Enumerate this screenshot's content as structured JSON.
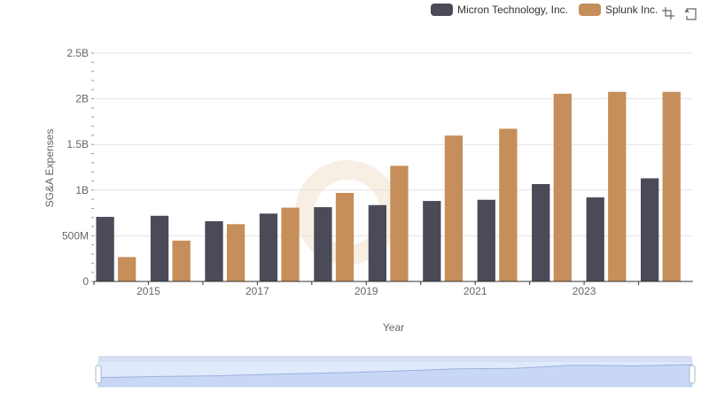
{
  "legend": [
    {
      "name": "Micron Technology, Inc.",
      "color": "#4a4a58"
    },
    {
      "name": "Splunk Inc.",
      "color": "#c68e5a"
    }
  ],
  "toolbox": {
    "icons": [
      "zoom-icon",
      "restore-icon"
    ]
  },
  "chart_data": {
    "type": "bar",
    "title": "",
    "xlabel": "Year",
    "ylabel": "SG&A Expenses",
    "ylim": [
      0,
      2500000000
    ],
    "y_ticks": [
      0,
      500000000,
      1000000000,
      1500000000,
      2000000000,
      2500000000
    ],
    "y_tick_labels": [
      "0",
      "500M",
      "1B",
      "1.5B",
      "2B",
      "2.5B"
    ],
    "categories": [
      "2014",
      "2015",
      "2016",
      "2017",
      "2018",
      "2019",
      "2020",
      "2021",
      "2022",
      "2023",
      "2024"
    ],
    "x_tick_labels": [
      "2015",
      "2017",
      "2019",
      "2021",
      "2023"
    ],
    "series": [
      {
        "name": "Micron Technology, Inc.",
        "color": "#4a4a58",
        "values": [
          707000000,
          719000000,
          659000000,
          743000000,
          813000000,
          836000000,
          881000000,
          894000000,
          1066000000,
          920000000,
          1129000000
        ]
      },
      {
        "name": "Splunk Inc.",
        "color": "#c68e5a",
        "values": [
          267000000,
          447000000,
          627000000,
          808000000,
          969000000,
          1266000000,
          1597000000,
          1672000000,
          2055000000,
          2076000000,
          2076000000
        ]
      }
    ],
    "grid": true,
    "legend_position": "top-right",
    "data_zoom": true
  }
}
